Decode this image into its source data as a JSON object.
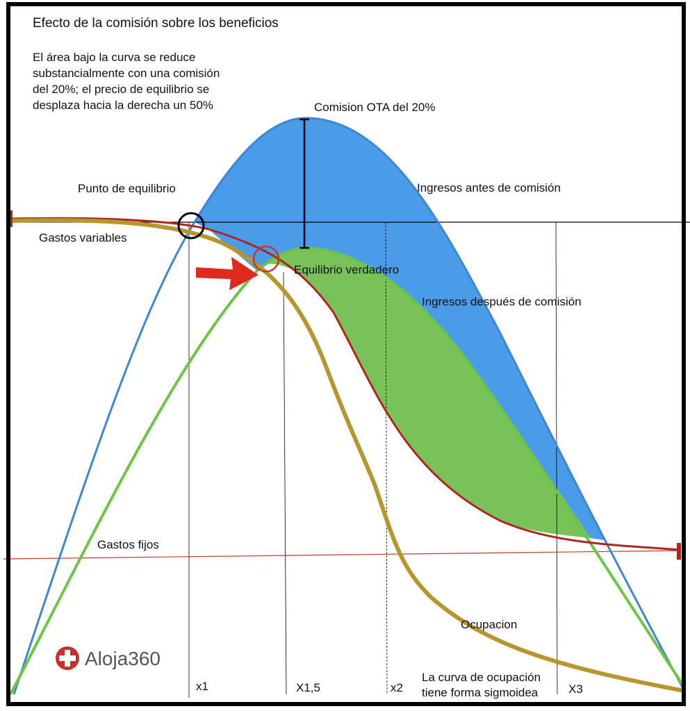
{
  "title": "Efecto de la comisión sobre los beneficios",
  "note": [
    "El área bajo la curva se reduce",
    "substancialmente con una comisión",
    "del 20%; el precio de equilibrio se",
    "desplaza hacia la derecha un 50%"
  ],
  "labels": {
    "commission": "Comision OTA del 20%",
    "breakeven": "Punto de equilibrio",
    "revenue_before": "Ingresos antes de comisión",
    "variable_costs": "Gastos variables",
    "true_breakeven": "Equilibrio verdadero",
    "revenue_after": "Ingresos después de comisión",
    "fixed_costs": "Gastos fijos",
    "occupancy": "Ocupacion",
    "sigmoid": [
      "La curva de ocupación",
      "tiene forma sigmoidea"
    ]
  },
  "x_marks": [
    "x1",
    "X1,5",
    "x2",
    "X3"
  ],
  "logo": "Aloja360"
}
